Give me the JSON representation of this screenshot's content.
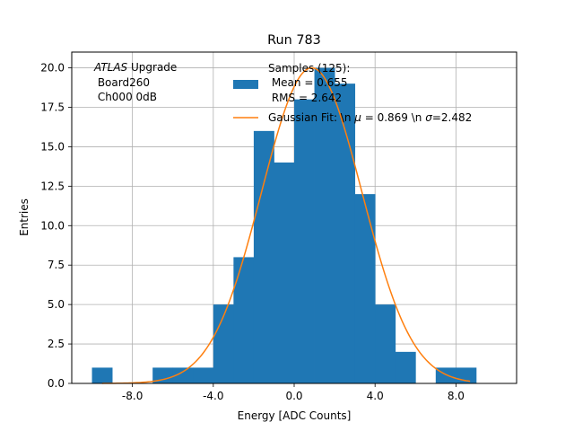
{
  "chart_data": {
    "type": "bar",
    "title": "Run 783",
    "xlabel": "Energy [ADC Counts]",
    "ylabel": "Entries",
    "xlim": [
      -11,
      11
    ],
    "ylim": [
      0,
      21
    ],
    "grid": true,
    "x_ticks": [
      {
        "value": -8,
        "label": "-8.0"
      },
      {
        "value": -4,
        "label": "-4.0"
      },
      {
        "value": 0,
        "label": "0.0"
      },
      {
        "value": 4,
        "label": "4.0"
      },
      {
        "value": 8,
        "label": "8.0"
      }
    ],
    "y_ticks": [
      {
        "value": 0,
        "label": "0.0"
      },
      {
        "value": 2.5,
        "label": "2.5"
      },
      {
        "value": 5,
        "label": "5.0"
      },
      {
        "value": 7.5,
        "label": "7.5"
      },
      {
        "value": 10,
        "label": "10.0"
      },
      {
        "value": 12.5,
        "label": "12.5"
      },
      {
        "value": 15,
        "label": "15.0"
      },
      {
        "value": 17.5,
        "label": "17.5"
      },
      {
        "value": 20,
        "label": "20.0"
      }
    ],
    "histogram": {
      "color": "#1f77b4",
      "bin_edges": [
        -10,
        -9,
        -8,
        -7,
        -6,
        -5,
        -4,
        -3,
        -2,
        -1,
        0,
        1,
        2,
        3,
        4,
        5,
        6,
        7,
        8,
        9
      ],
      "counts": [
        1,
        0,
        0,
        1,
        1,
        1,
        5,
        8,
        16,
        14,
        18,
        20,
        19,
        12,
        5,
        2,
        0,
        1,
        1
      ]
    },
    "gaussian_fit": {
      "color": "#ff7f0e",
      "amplitude": 20,
      "mu": 0.869,
      "sigma": 2.482,
      "x_range": [
        -9.5,
        8.7
      ]
    },
    "legend": {
      "placement": "top-center",
      "histogram_lines": [
        "Samples (125):",
        " Mean = 0.655",
        " RMS = 2.642"
      ],
      "fit_label": "Gaussian Fit: \\n $\\mu$ = 0.869 \\n $\\sigma$=2.482",
      "fit_prefix": "Gaussian Fit: \\n ",
      "fit_mu_symbol": "μ",
      "fit_mid": " = 0.869 \\n ",
      "fit_sigma_symbol": "σ",
      "fit_suffix": "=2.482"
    },
    "annotation": {
      "italic": "ATLAS",
      "rest": " Upgrade",
      "line2": " Board260",
      "line3": " Ch000 0dB"
    }
  }
}
